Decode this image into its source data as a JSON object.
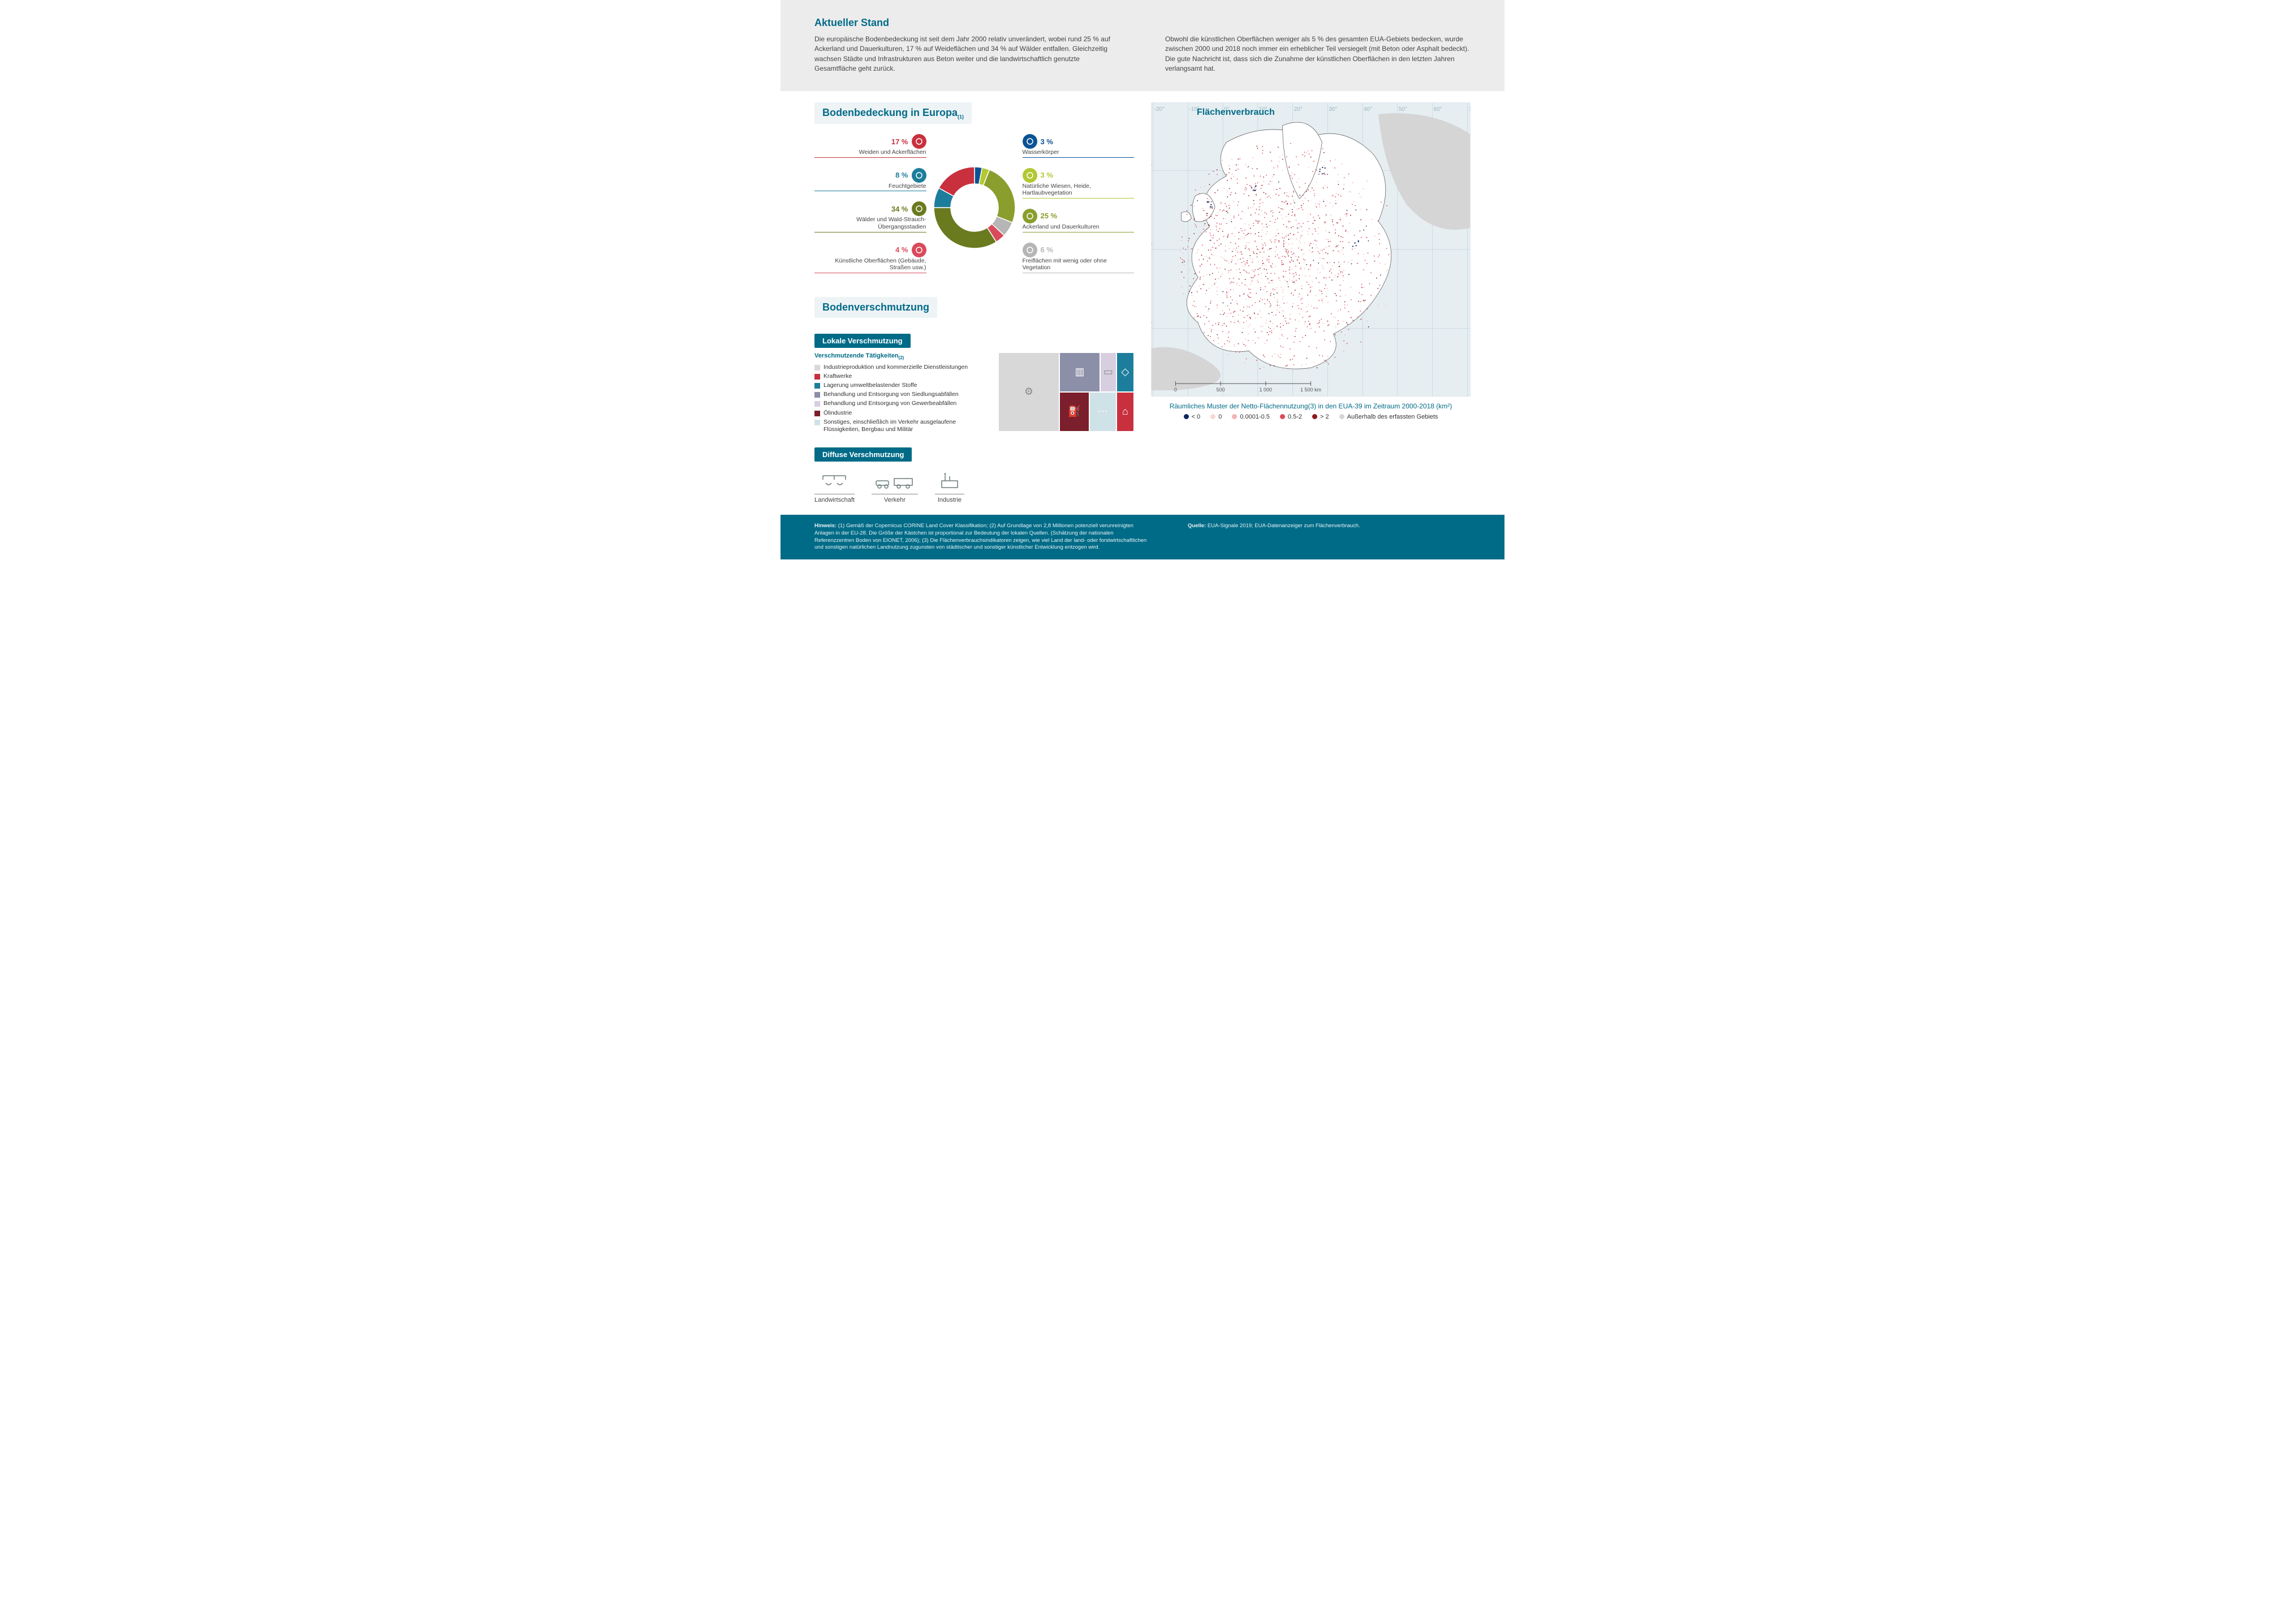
{
  "header": {
    "title": "Aktueller Stand",
    "col1": "Die europäische Bodenbedeckung ist seit dem Jahr 2000 relativ unverändert, wobei rund 25 % auf Ackerland und Dauerkulturen, 17 % auf Weideflächen und 34 % auf Wälder entfallen. Gleichzeitig wachsen Städte und Infrastrukturen aus Beton weiter und die landwirtschaftlich genutzte Gesamtfläche geht zurück.",
    "col2": "Obwohl die künstlichen Oberflächen weniger als 5 % des gesamten EUA-Gebiets bedecken, wurde zwischen 2000 und 2018 noch immer ein erheblicher Teil versiegelt (mit Beton oder Asphalt bedeckt). Die gute Nachricht ist, dass sich die Zunahme der künstlichen Oberflächen in den letzten Jahren verlangsamt hat."
  },
  "landcover": {
    "title": "Bodenbedeckung in Europa",
    "note_ref": "(1)",
    "donut": {
      "type": "donut",
      "inner_radius": 42,
      "outer_radius": 72,
      "background_color": "#ffffff",
      "segments": [
        {
          "key": "wasserkoerper",
          "label": "Wasserkörper",
          "pct": 3,
          "color": "#0b5394"
        },
        {
          "key": "wiesen_heide",
          "label": "Natürliche Wiesen, Heide, Hartlaubvegetation",
          "pct": 3,
          "color": "#b3c833"
        },
        {
          "key": "ackerland",
          "label": "Ackerland und Dauerkulturen",
          "pct": 25,
          "color": "#8a9e2d"
        },
        {
          "key": "freiflaechen",
          "label": "Freiflächen mit wenig oder ohne Vegetation",
          "pct": 6,
          "color": "#b6b6b6"
        },
        {
          "key": "kuenstlich",
          "label": "Künstliche Oberflächen (Gebäude, Straßen usw.)",
          "pct": 4,
          "color": "#d94a5a"
        },
        {
          "key": "waelder",
          "label": "Wälder und Wald-Strauch-Übergangsstadien",
          "pct": 34,
          "color": "#6a7a1f"
        },
        {
          "key": "feuchtgebiete",
          "label": "Feuchtgebiete",
          "pct": 8,
          "color": "#1c7e9c"
        },
        {
          "key": "weiden",
          "label": "Weiden und Ackerflächen",
          "pct": 17,
          "color": "#c9303e"
        }
      ],
      "left_order": [
        "weiden",
        "feuchtgebiete",
        "waelder",
        "kuenstlich"
      ],
      "right_order": [
        "wasserkoerper",
        "wiesen_heide",
        "ackerland",
        "freiflaechen"
      ]
    }
  },
  "pollution": {
    "title": "Bodenverschmutzung",
    "local": {
      "badge": "Lokale Verschmutzung",
      "legend_title": "Verschmutzende Tätigkeiten",
      "legend_ref": "(2)",
      "items": [
        {
          "label": "Industrieproduktion und kommerzielle Dienstleistungen",
          "color": "#d8d8d8",
          "share": 0.33
        },
        {
          "label": "Kraftwerke",
          "color": "#c9303e",
          "share": 0.04
        },
        {
          "label": "Lagerung umweltbelastender Stoffe",
          "color": "#1c7e9c",
          "share": 0.1
        },
        {
          "label": "Behandlung und Entsorgung von Siedlungsabfällen",
          "color": "#8b8fa8",
          "share": 0.16
        },
        {
          "label": "Behandlung und Entsorgung von Gewerbeabfällen",
          "color": "#d7cfe0",
          "share": 0.09
        },
        {
          "label": "Ölindustrie",
          "color": "#7a1f2b",
          "share": 0.14
        },
        {
          "label": "Sonstiges, einschließlich im Verkehr ausgelaufene Flüssigkeiten, Bergbau und Militär",
          "color": "#cfe2e8",
          "share": 0.14
        }
      ]
    },
    "diffuse": {
      "badge": "Diffuse Verschmutzung",
      "items": [
        {
          "label": "Landwirtschaft"
        },
        {
          "label": "Verkehr"
        },
        {
          "label": "Industrie"
        }
      ]
    }
  },
  "map": {
    "title": "Flächenverbrauch",
    "background_color": "#e6eef2",
    "land_color": "#d5d5d5",
    "gridline_color": "#bfd3dc",
    "eu_fill": "#ffffff",
    "caption": "Räumliches Muster der Netto-Flächennutzung(3) in den EUA-39 im Zeitraum 2000-2018 (km²)",
    "scale_labels": [
      "0",
      "500",
      "1 000",
      "1 500 km"
    ],
    "legend": [
      {
        "label": "< 0",
        "color": "#12245e"
      },
      {
        "label": "0",
        "color": "#f3d9d6"
      },
      {
        "label": "0.0001-0.5",
        "color": "#f2b4b4"
      },
      {
        "label": "0.5-2",
        "color": "#d94a5a"
      },
      {
        "label": "> 2",
        "color": "#8a1a1a"
      },
      {
        "label": "Außerhalb des erfassten Gebiets",
        "color": "#d5d5d5"
      }
    ],
    "lon_labels": [
      "-20°",
      "-10°",
      "0°",
      "10°",
      "20°",
      "30°",
      "40°",
      "50°",
      "60°",
      "70°"
    ],
    "lat_labels": [
      "60°",
      "50°",
      "40°"
    ]
  },
  "footer": {
    "hinweis_label": "Hinweis:",
    "hinweis": "(1) Gemäß der Copernicus CORINE Land Cover Klassifikation; (2) Auf Grundlage von 2,8 Millionen potenziell verunreinigten Anlagen in der EU-28. Die Größe der Kästchen ist proportional zur Bedeutung der lokalen Quellen. (Schätzung der nationalen Referenzzentren Boden von EIONET, 2006); (3) Die Flächenverbrauchsindikatoren zeigen, wie viel Land der land- oder forstwirtschaftlichen und sonstigen natürlichen Landnutzung zugunsten von städtischer und sonstiger künstlicher Entwicklung entzogen wird.",
    "quelle_label": "Quelle:",
    "quelle": "EUA-Signale 2019; EUA-Datenanzeiger zum Flächenverbrauch."
  }
}
